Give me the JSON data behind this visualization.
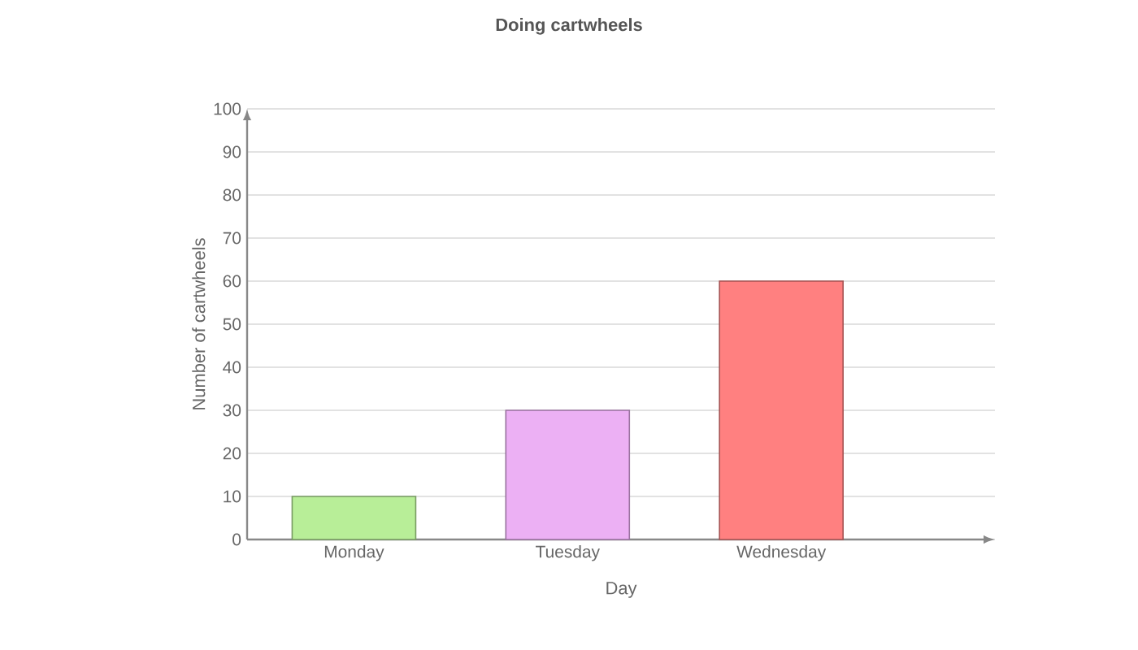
{
  "chart_data": {
    "type": "bar",
    "title": "Doing cartwheels",
    "xlabel": "Day",
    "ylabel": "Number of cartwheels",
    "categories": [
      "Monday",
      "Tuesday",
      "Wednesday"
    ],
    "values": [
      10,
      30,
      60
    ],
    "colors": [
      "#b8ee98",
      "#ecb0f4",
      "#ff8080"
    ],
    "ylim": [
      0,
      100
    ],
    "yticks": [
      0,
      10,
      20,
      30,
      40,
      50,
      60,
      70,
      80,
      90,
      100
    ],
    "grid": "y"
  }
}
